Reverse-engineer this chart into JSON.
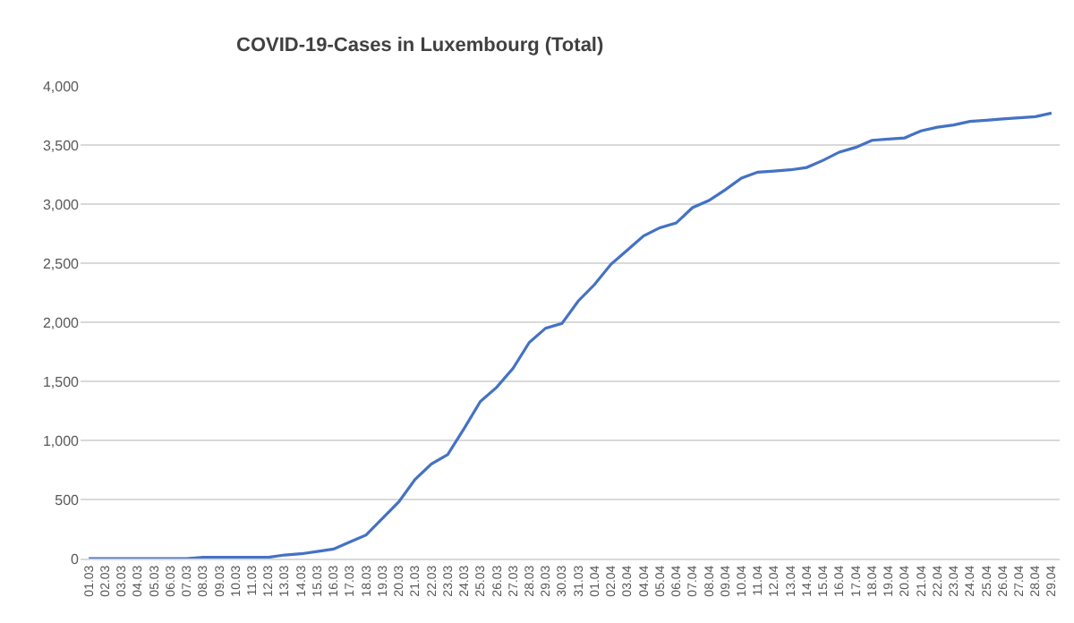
{
  "chart_data": {
    "type": "line",
    "title": "COVID-19-Cases in Luxembourg (Total)",
    "categories": [
      "01.03",
      "02.03",
      "03.03",
      "04.03",
      "05.03",
      "06.03",
      "07.03",
      "08.03",
      "09.03",
      "10.03",
      "11.03",
      "12.03",
      "13.03",
      "14.03",
      "15.03",
      "16.03",
      "17.03",
      "18.03",
      "19.03",
      "20.03",
      "21.03",
      "22.03",
      "23.03",
      "24.03",
      "25.03",
      "26.03",
      "27.03",
      "28.03",
      "29.03",
      "30.03",
      "31.03",
      "01.04",
      "02.04",
      "03.04",
      "04.04",
      "05.04",
      "06.04",
      "07.04",
      "08.04",
      "09.04",
      "10.04",
      "11.04",
      "12.04",
      "13.04",
      "14.04",
      "15.04",
      "16.04",
      "17.04",
      "18.04",
      "19.04",
      "20.04",
      "21.04",
      "22.04",
      "23.04",
      "24.04",
      "25.04",
      "26.04",
      "27.04",
      "28.04",
      "29.04"
    ],
    "series": [
      {
        "color": "#4472c4",
        "values": [
          0,
          0,
          0,
          0,
          0,
          0,
          0,
          10,
          10,
          10,
          10,
          10,
          30,
          40,
          60,
          80,
          140,
          200,
          340,
          480,
          670,
          800,
          880,
          1100,
          1330,
          1450,
          1610,
          1830,
          1950,
          1990,
          2180,
          2320,
          2490,
          2610,
          2730,
          2800,
          2840,
          2970,
          3030,
          3120,
          3220,
          3270,
          3280,
          3290,
          3310,
          3370,
          3440,
          3480,
          3540,
          3550,
          3560,
          3620,
          3650,
          3670,
          3700,
          3710,
          3720,
          3730,
          3740,
          3770
        ]
      }
    ],
    "ylim": [
      0,
      4000
    ],
    "yticks": [
      {
        "value": 0,
        "label": "0"
      },
      {
        "value": 500,
        "label": "500"
      },
      {
        "value": 1000,
        "label": "1,000"
      },
      {
        "value": 1500,
        "label": "1,500"
      },
      {
        "value": 2000,
        "label": "2,000"
      },
      {
        "value": 2500,
        "label": "2,500"
      },
      {
        "value": 3000,
        "label": "3,000"
      },
      {
        "value": 3500,
        "label": "3,500"
      },
      {
        "value": 4000,
        "label": "4,000"
      }
    ],
    "grid": "y",
    "marker": "none",
    "line_style": "solid"
  }
}
